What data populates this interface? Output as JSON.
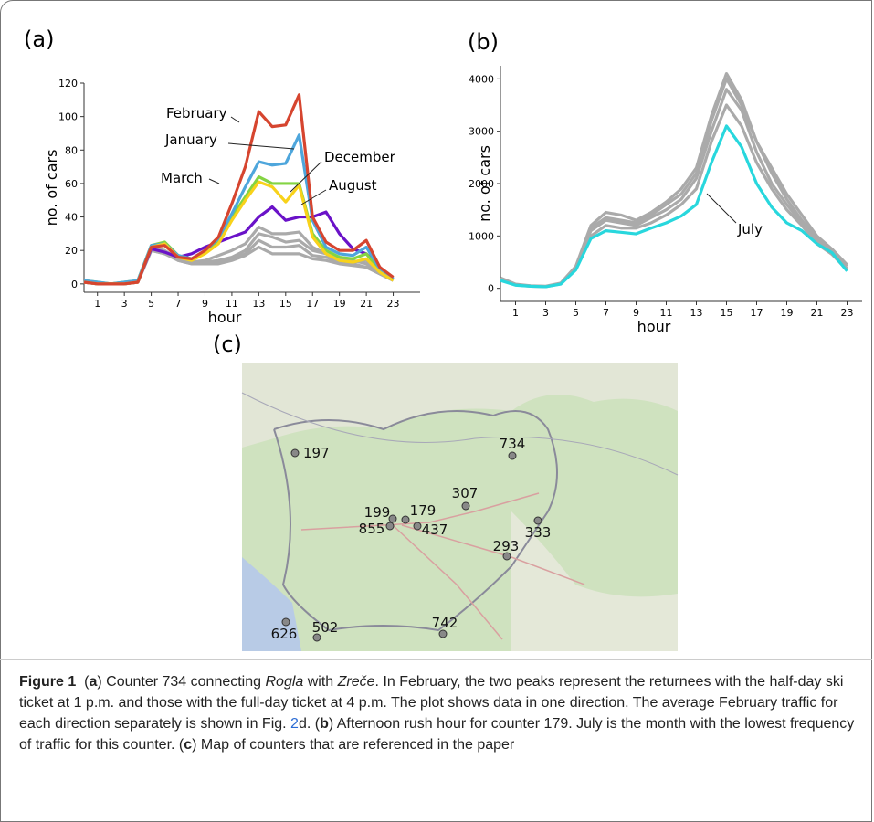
{
  "panels": [
    "(a)",
    "(b)",
    "(c)"
  ],
  "chart_data": [
    {
      "type": "line",
      "xlabel": "hour",
      "ylabel": "no. of cars",
      "x": [
        0,
        1,
        2,
        3,
        4,
        5,
        6,
        7,
        8,
        9,
        10,
        11,
        12,
        13,
        14,
        15,
        16,
        17,
        18,
        19,
        20,
        21,
        22,
        23
      ],
      "xlim": [
        0,
        25
      ],
      "xticks": [
        1,
        3,
        5,
        7,
        9,
        11,
        13,
        15,
        17,
        19,
        21,
        23
      ],
      "ylim": [
        -5,
        120
      ],
      "yticks": [
        0,
        20,
        40,
        60,
        80,
        100,
        120
      ],
      "series": [
        {
          "color": "#aaaaaa",
          "values": [
            1,
            0,
            0,
            0,
            1,
            22,
            20,
            15,
            13,
            13,
            14,
            16,
            20,
            30,
            28,
            25,
            26,
            20,
            18,
            15,
            14,
            12,
            7,
            3
          ]
        },
        {
          "color": "#aaaaaa",
          "values": [
            1,
            0,
            0,
            0,
            1,
            21,
            19,
            14,
            12,
            12,
            13,
            15,
            18,
            26,
            22,
            22,
            23,
            17,
            16,
            13,
            12,
            10,
            6,
            2
          ]
        },
        {
          "color": "#aaaaaa",
          "values": [
            1,
            0,
            0,
            0,
            1,
            20,
            18,
            14,
            12,
            12,
            12,
            14,
            17,
            22,
            18,
            18,
            18,
            15,
            14,
            12,
            11,
            10,
            6,
            2
          ]
        },
        {
          "color": "#aaaaaa",
          "values": [
            1,
            0,
            0,
            0,
            1,
            20,
            18,
            15,
            13,
            14,
            17,
            20,
            24,
            34,
            30,
            30,
            31,
            22,
            18,
            14,
            13,
            14,
            7,
            3
          ]
        },
        {
          "name": "August",
          "color": "#6a12c8",
          "values": [
            1,
            0,
            0,
            0,
            1,
            21,
            19,
            16,
            18,
            22,
            25,
            28,
            31,
            40,
            46,
            38,
            40,
            40,
            43,
            30,
            21,
            18,
            10,
            3
          ]
        },
        {
          "name": "March",
          "color": "#84d443",
          "values": [
            2,
            1,
            0,
            1,
            2,
            23,
            25,
            17,
            15,
            19,
            25,
            40,
            52,
            64,
            60,
            60,
            60,
            30,
            20,
            16,
            15,
            18,
            8,
            3
          ]
        },
        {
          "name": "January",
          "color": "#4ea6dc",
          "values": [
            2,
            1,
            0,
            1,
            2,
            23,
            24,
            17,
            15,
            20,
            27,
            42,
            58,
            73,
            71,
            72,
            89,
            38,
            22,
            18,
            17,
            22,
            9,
            3
          ]
        },
        {
          "name": "December",
          "color": "#f8d21a",
          "values": [
            1,
            0,
            0,
            0,
            1,
            22,
            24,
            16,
            14,
            18,
            24,
            38,
            50,
            61,
            58,
            49,
            59,
            28,
            18,
            14,
            13,
            15,
            7,
            2
          ]
        },
        {
          "name": "February",
          "color": "#d6452f",
          "values": [
            1,
            0,
            0,
            0,
            1,
            22,
            23,
            16,
            15,
            20,
            28,
            48,
            70,
            103,
            94,
            95,
            113,
            40,
            25,
            20,
            20,
            26,
            10,
            4
          ]
        }
      ]
    },
    {
      "type": "line",
      "xlabel": "hour",
      "ylabel": "no. of cars",
      "x": [
        0,
        1,
        2,
        3,
        4,
        5,
        6,
        7,
        8,
        9,
        10,
        11,
        12,
        13,
        14,
        15,
        16,
        17,
        18,
        19,
        20,
        21,
        22,
        23
      ],
      "xlim": [
        0,
        24
      ],
      "xticks": [
        1,
        3,
        5,
        7,
        9,
        11,
        13,
        15,
        17,
        19,
        21,
        23
      ],
      "ylim": [
        -250,
        4250
      ],
      "yticks": [
        0,
        1000,
        2000,
        3000,
        4000
      ],
      "series": [
        {
          "color": "#aaaaaa",
          "values": [
            200,
            80,
            50,
            40,
            100,
            420,
            1200,
            1450,
            1400,
            1300,
            1450,
            1650,
            1900,
            2300,
            3300,
            4100,
            3600,
            2800,
            2300,
            1800,
            1400,
            1000,
            750,
            450
          ]
        },
        {
          "color": "#aaaaaa",
          "values": [
            180,
            70,
            45,
            35,
            90,
            400,
            1150,
            1350,
            1300,
            1250,
            1400,
            1600,
            1800,
            2200,
            3200,
            4000,
            3500,
            2800,
            2200,
            1700,
            1300,
            950,
            700,
            420
          ]
        },
        {
          "color": "#aaaaaa",
          "values": [
            170,
            70,
            45,
            35,
            90,
            380,
            1100,
            1300,
            1250,
            1200,
            1350,
            1500,
            1700,
            2100,
            3000,
            3800,
            3400,
            2600,
            2000,
            1600,
            1250,
            900,
            650,
            380
          ]
        },
        {
          "color": "#aaaaaa",
          "values": [
            160,
            65,
            40,
            30,
            85,
            360,
            1000,
            1200,
            1150,
            1150,
            1250,
            1400,
            1600,
            1900,
            2800,
            3500,
            3100,
            2400,
            1900,
            1500,
            1200,
            850,
            650,
            350
          ]
        },
        {
          "name": "July",
          "color": "#28d7dd",
          "values": [
            150,
            60,
            40,
            30,
            80,
            350,
            950,
            1100,
            1070,
            1040,
            1150,
            1250,
            1380,
            1600,
            2400,
            3100,
            2700,
            2000,
            1550,
            1250,
            1100,
            850,
            680,
            330
          ]
        }
      ]
    }
  ],
  "map": {
    "counters": [
      "197",
      "734",
      "307",
      "199",
      "179",
      "855",
      "437",
      "333",
      "293",
      "742",
      "626",
      "502"
    ]
  },
  "caption": {
    "label": "Figure 1",
    "segments": [
      "(",
      "a",
      ") Counter 734 connecting ",
      "Rogla",
      " with ",
      "Zreče",
      ". In February, the two peaks represent the returnees with the half-day ski ticket at 1 p.m. and those with the full-day ticket at 4 p.m. The plot shows data in one direction. The average February traffic for each direction separately is shown in Fig. ",
      "2",
      "d. (",
      "b",
      ") Afternoon rush hour for counter 179. July is the month with the lowest frequency of traffic for this counter. (",
      "c",
      ") Map of counters that are referenced in the paper"
    ]
  }
}
